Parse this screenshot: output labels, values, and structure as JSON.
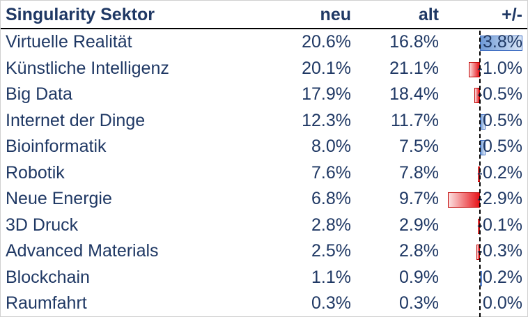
{
  "header": {
    "sektor": "Singularity Sektor",
    "neu": "neu",
    "alt": "alt",
    "delta": "+/-"
  },
  "chart_data": {
    "type": "table",
    "columns": [
      "Singularity Sektor",
      "neu",
      "alt",
      "+/-"
    ],
    "rows": [
      {
        "sektor": "Virtuelle Realität",
        "neu": "20.6%",
        "alt": "16.8%",
        "delta": "3.8%",
        "delta_value": 3.8
      },
      {
        "sektor": "Künstliche Intelligenz",
        "neu": "20.1%",
        "alt": "21.1%",
        "delta": "-1.0%",
        "delta_value": -1.0
      },
      {
        "sektor": "Big Data",
        "neu": "17.9%",
        "alt": "18.4%",
        "delta": "-0.5%",
        "delta_value": -0.5
      },
      {
        "sektor": "Internet der Dinge",
        "neu": "12.3%",
        "alt": "11.7%",
        "delta": "0.5%",
        "delta_value": 0.5
      },
      {
        "sektor": "Bioinformatik",
        "neu": "8.0%",
        "alt": "7.5%",
        "delta": "0.5%",
        "delta_value": 0.5
      },
      {
        "sektor": "Robotik",
        "neu": "7.6%",
        "alt": "7.8%",
        "delta": "-0.2%",
        "delta_value": -0.2
      },
      {
        "sektor": "Neue Energie",
        "neu": "6.8%",
        "alt": "9.7%",
        "delta": "-2.9%",
        "delta_value": -2.9
      },
      {
        "sektor": "3D Druck",
        "neu": "2.8%",
        "alt": "2.9%",
        "delta": "-0.1%",
        "delta_value": -0.1
      },
      {
        "sektor": "Advanced Materials",
        "neu": "2.5%",
        "alt": "2.8%",
        "delta": "-0.3%",
        "delta_value": -0.3
      },
      {
        "sektor": "Blockchain",
        "neu": "1.1%",
        "alt": "0.9%",
        "delta": "0.2%",
        "delta_value": 0.2
      },
      {
        "sektor": "Raumfahrt",
        "neu": "0.3%",
        "alt": "0.3%",
        "delta": "0.0%",
        "delta_value": 0.0
      }
    ],
    "colors": {
      "positive": "#4472c4",
      "negative": "#e8141a",
      "text": "#1f3864"
    }
  }
}
